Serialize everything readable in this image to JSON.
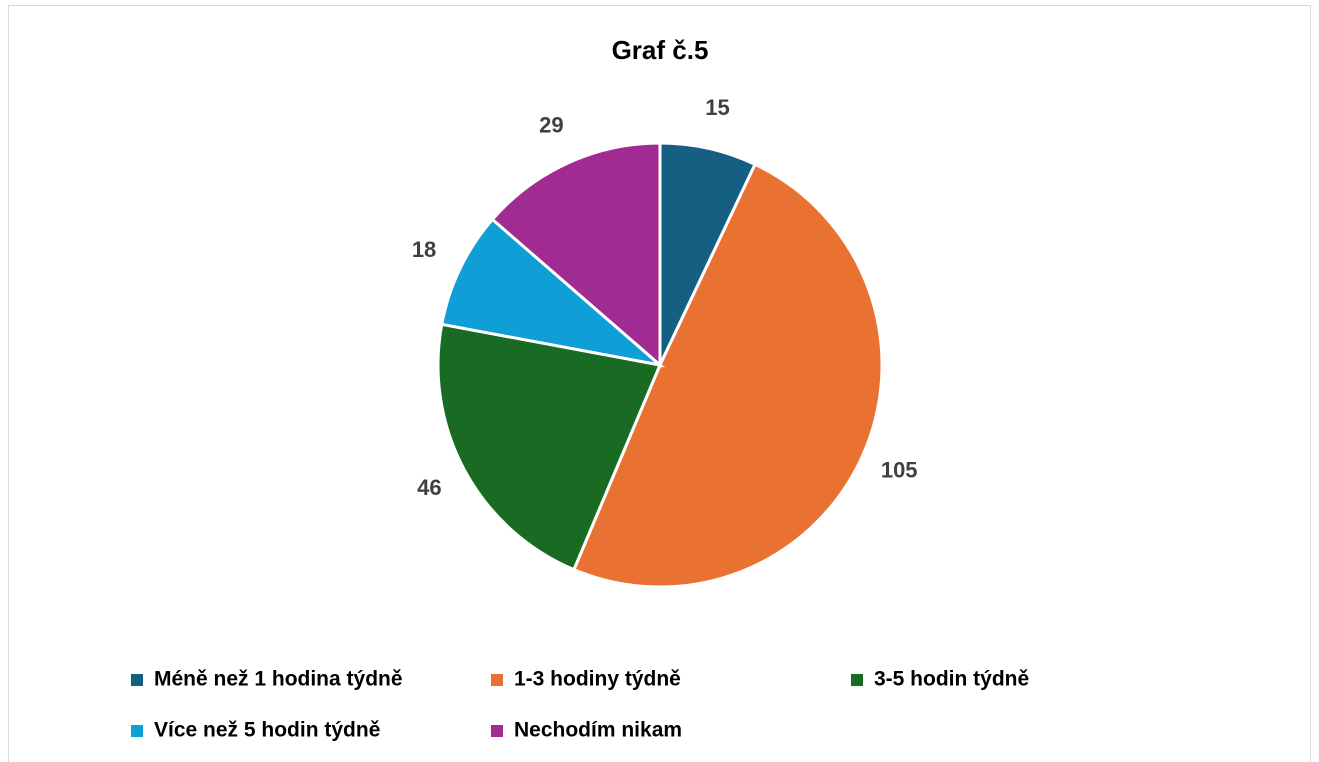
{
  "chart_data": {
    "type": "pie",
    "title": "Graf č.5",
    "categories": [
      "Méně než 1 hodina týdně",
      "1-3 hodiny týdně",
      "3-5 hodin týdně",
      "Více než 5 hodin týdně",
      "Nechodím nikam"
    ],
    "values": [
      15,
      105,
      46,
      18,
      29
    ],
    "colors": [
      "#156082",
      "#e97132",
      "#196b24",
      "#0f9ed5",
      "#a02b93"
    ],
    "legend": "bottom"
  }
}
